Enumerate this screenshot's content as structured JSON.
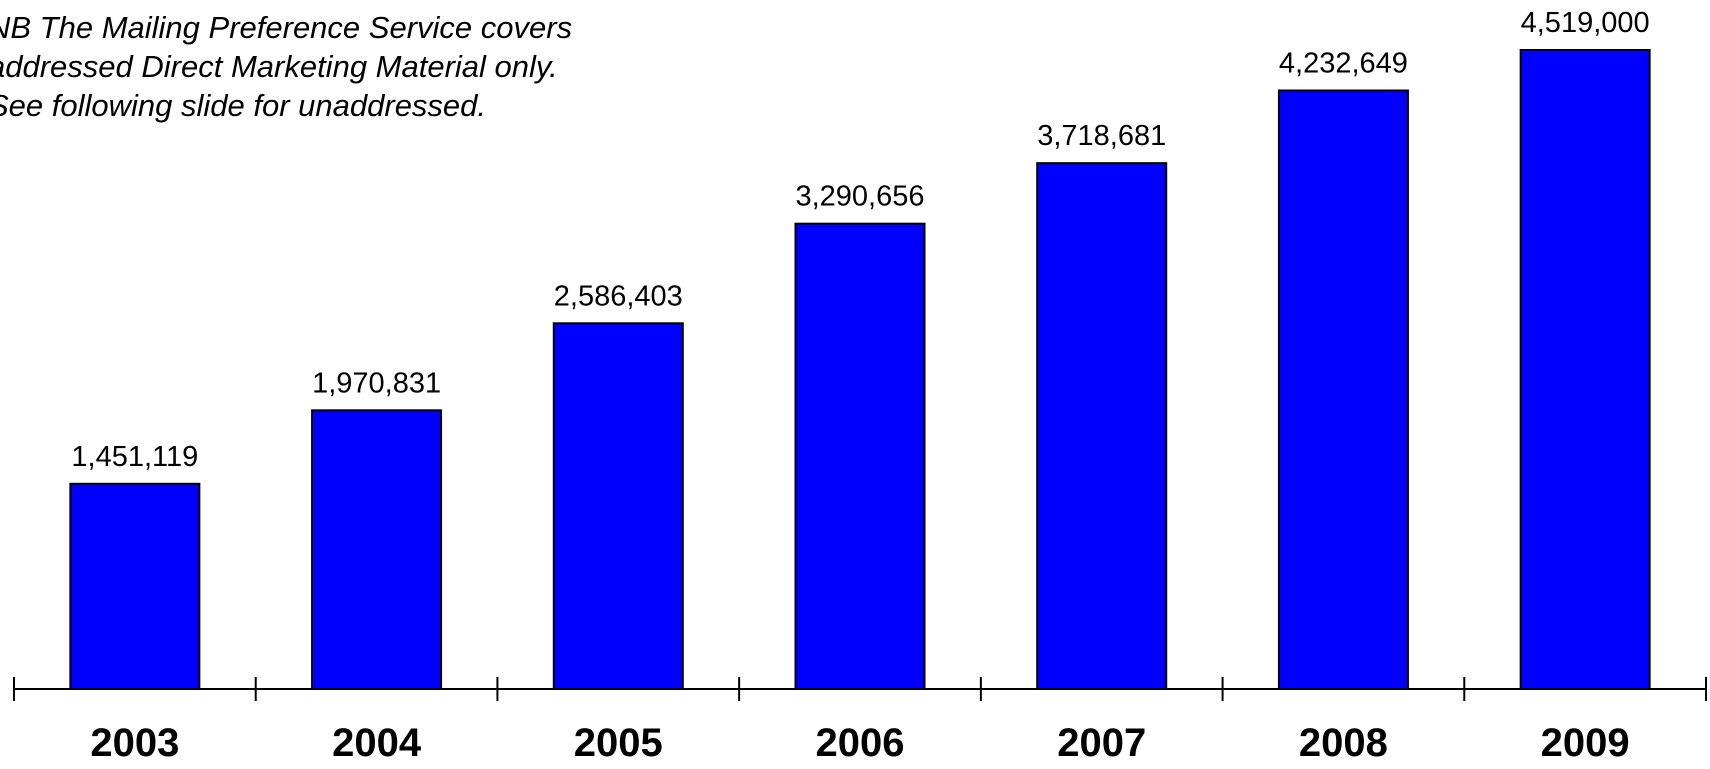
{
  "note": {
    "lines": [
      "NB The Mailing Preference Service covers",
      "addressed Direct Marketing Material only.",
      "See following slide for unaddressed."
    ]
  },
  "chart_data": {
    "type": "bar",
    "categories": [
      "2003",
      "2004",
      "2005",
      "2006",
      "2007",
      "2008",
      "2009"
    ],
    "values": [
      1451119,
      1970831,
      2586403,
      3290656,
      3718681,
      4232649,
      4519000
    ],
    "data_labels": [
      "1,451,119",
      "1,970,831",
      "2,586,403",
      "3,290,656",
      "3,718,681",
      "4,232,649",
      "4,519,000"
    ],
    "title": "",
    "xlabel": "",
    "ylabel": "",
    "ylim": [
      0,
      4519000
    ],
    "grid": false,
    "bar_color": "#0000ff"
  }
}
